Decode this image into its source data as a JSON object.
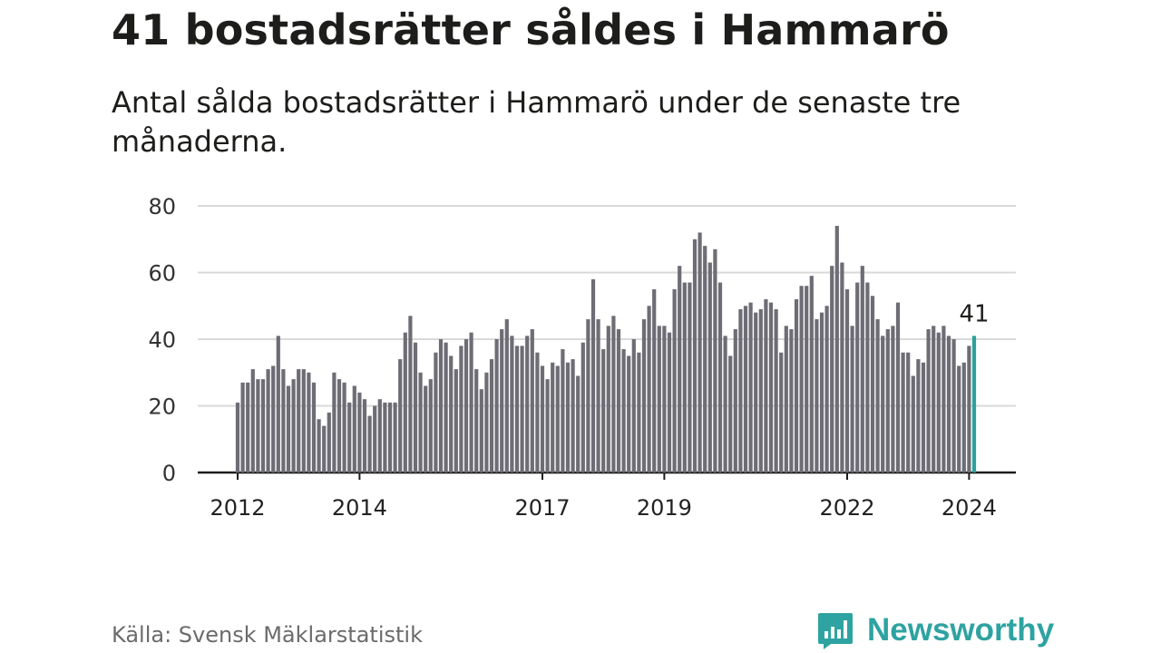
{
  "header": {
    "title": "41 bostadsrätter såldes i Hammarö",
    "subtitle": "Antal sålda bostadsrätter i Hammarö under de senaste tre månaderna."
  },
  "footer": {
    "source": "Källa: Svensk Mäklarstatistik",
    "brand": "Newsworthy"
  },
  "chart_data": {
    "type": "bar",
    "title": "41 bostadsrätter såldes i Hammarö",
    "subtitle": "Antal sålda bostadsrätter i Hammarö under de senaste tre månaderna.",
    "xlabel": "",
    "ylabel": "",
    "ylim": [
      0,
      80
    ],
    "y_ticks": [
      "0",
      "20",
      "40",
      "60",
      "80"
    ],
    "x_tick_labels": [
      "2012",
      "2014",
      "2017",
      "2019",
      "2022",
      "2024"
    ],
    "x_tick_month_index": [
      0,
      24,
      60,
      84,
      120,
      144
    ],
    "start": "2012-01",
    "end": "2024-01",
    "grid": true,
    "bar_color": "#6e6d75",
    "highlight_color": "#2aa29c",
    "highlight_label": "41",
    "series": [
      {
        "name": "Antal sålda bostadsrätter (rullande tre månader)",
        "values": [
          21,
          27,
          27,
          31,
          28,
          28,
          31,
          32,
          41,
          31,
          26,
          28,
          31,
          31,
          30,
          27,
          16,
          14,
          18,
          30,
          28,
          27,
          21,
          26,
          24,
          22,
          17,
          20,
          22,
          21,
          21,
          21,
          34,
          42,
          47,
          39,
          30,
          26,
          28,
          36,
          40,
          39,
          35,
          31,
          38,
          40,
          42,
          31,
          25,
          30,
          34,
          40,
          43,
          46,
          41,
          38,
          38,
          41,
          43,
          36,
          32,
          28,
          33,
          32,
          37,
          33,
          34,
          29,
          39,
          46,
          58,
          46,
          37,
          44,
          47,
          43,
          37,
          35,
          40,
          36,
          46,
          50,
          55,
          44,
          44,
          42,
          55,
          62,
          57,
          57,
          70,
          72,
          68,
          63,
          67,
          57,
          41,
          35,
          43,
          49,
          50,
          51,
          48,
          49,
          52,
          51,
          49,
          36,
          44,
          43,
          52,
          56,
          56,
          59,
          46,
          48,
          50,
          62,
          74,
          63,
          55,
          44,
          57,
          62,
          57,
          53,
          46,
          41,
          43,
          44,
          51,
          36,
          36,
          29,
          34,
          33,
          43,
          44,
          42,
          44,
          41,
          40,
          32,
          33,
          38,
          41
        ]
      }
    ]
  }
}
